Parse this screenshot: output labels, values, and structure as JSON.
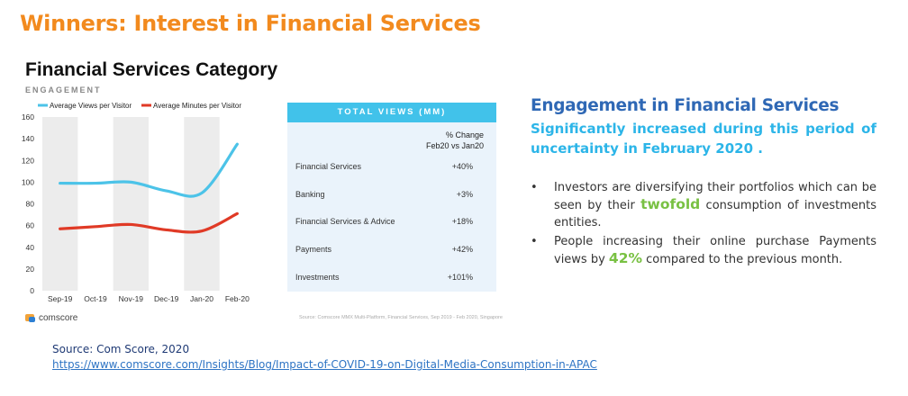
{
  "slide": {
    "title": "Winners: Interest in Financial Services",
    "category_title": "Financial Services Category",
    "engagement_label": "ENGAGEMENT",
    "comscore_label": "comscore",
    "source_note": "Source: Comscore MMX Multi-Platform, Financial Services, Sep 2019 - Feb 2020, Singapore"
  },
  "table": {
    "header": "TOTAL VIEWS (MM)",
    "col_header_1": "% Change",
    "col_header_2": "Feb20 vs Jan20",
    "rows": [
      {
        "label": "Financial Services",
        "value": "+40%"
      },
      {
        "label": "Banking",
        "value": "+3%"
      },
      {
        "label": "Financial Services & Advice",
        "value": "+18%"
      },
      {
        "label": "Payments",
        "value": "+42%"
      },
      {
        "label": "Investments",
        "value": "+101%"
      }
    ]
  },
  "right": {
    "heading": "Engagement in Financial Services",
    "subheading": "Significantly increased during this period of uncertainty in February 2020 .",
    "bullet1_a": "Investors are diversifying their portfolios which can be seen by their ",
    "bullet1_hl": "twofold",
    "bullet1_b": " consumption of investments entities.",
    "bullet2_a": "People increasing their online purchase Payments views by ",
    "bullet2_hl": "42%",
    "bullet2_b": " compared to the previous month.",
    "bullet_char": "•"
  },
  "source": {
    "label": "Source: Com Score, 2020",
    "url": "https://www.comscore.com/Insights/Blog/Impact-of-COVID-19-on-Digital-Media-Consumption-in-APAC"
  },
  "chart_data": {
    "type": "line",
    "categories": [
      "Sep-19",
      "Oct-19",
      "Nov-19",
      "Dec-19",
      "Jan-20",
      "Feb-20"
    ],
    "series": [
      {
        "name": "Average Views per Visitor",
        "color": "#4cc3e8",
        "values": [
          99,
          99,
          100,
          92,
          90,
          135
        ]
      },
      {
        "name": "Average Minutes per Visitor",
        "color": "#e03a26",
        "values": [
          57,
          59,
          61,
          56,
          55,
          71
        ]
      }
    ],
    "ylim": [
      0,
      160
    ],
    "yticks": [
      0,
      20,
      40,
      60,
      80,
      100,
      120,
      140,
      160
    ],
    "grid": false,
    "legend": "top-left"
  }
}
